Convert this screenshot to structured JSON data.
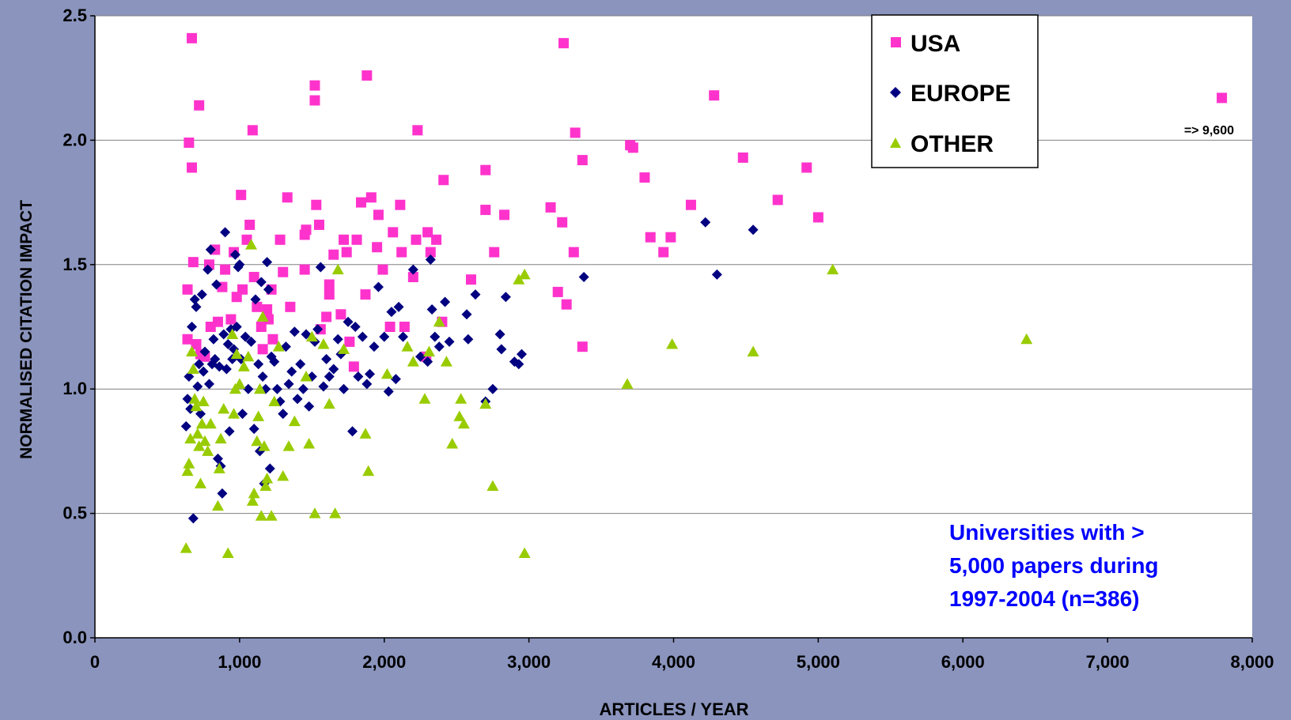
{
  "colors": {
    "background": "#8a94bd",
    "plot_bg": "#ffffff",
    "USA": "#ff33cc",
    "EUROPE": "#000080",
    "OTHER": "#99cc00",
    "annotation": "#0000ff"
  },
  "chart_data": {
    "type": "scatter",
    "title": "",
    "xlabel": "ARTICLES / YEAR",
    "ylabel": "NORMALISED CITATION IMPACT",
    "xlim": [
      0,
      8000
    ],
    "ylim": [
      0,
      2.5
    ],
    "x_ticks": [
      0,
      1000,
      2000,
      3000,
      4000,
      5000,
      6000,
      7000,
      8000
    ],
    "x_tick_labels": [
      "0",
      "1,000",
      "2,000",
      "3,000",
      "4,000",
      "5,000",
      "6,000",
      "7,000",
      "8,000"
    ],
    "y_ticks": [
      0,
      0.5,
      1,
      1.5,
      2,
      2.5
    ],
    "y_tick_labels": [
      "0.0",
      "0.5",
      "1.0",
      "1.5",
      "2.0",
      "2.5"
    ],
    "grid": "horizontal",
    "legend_position": "top-right",
    "annotation_text": [
      "Universities with  >",
      "5,000 papers during",
      "1997-2004 (n=386)"
    ],
    "outlier_label": "=> 9,600",
    "series": [
      {
        "name": "USA",
        "marker": "square",
        "points": [
          [
            670,
            2.41
          ],
          [
            650,
            1.99
          ],
          [
            670,
            1.89
          ],
          [
            720,
            2.14
          ],
          [
            640,
            1.4
          ],
          [
            680,
            1.51
          ],
          [
            640,
            1.2
          ],
          [
            700,
            1.18
          ],
          [
            730,
            1.14
          ],
          [
            760,
            1.13
          ],
          [
            800,
            1.25
          ],
          [
            790,
            1.5
          ],
          [
            830,
            1.56
          ],
          [
            850,
            1.27
          ],
          [
            880,
            1.41
          ],
          [
            900,
            1.48
          ],
          [
            940,
            1.28
          ],
          [
            960,
            1.55
          ],
          [
            980,
            1.37
          ],
          [
            1010,
            1.78
          ],
          [
            1020,
            1.4
          ],
          [
            1050,
            1.6
          ],
          [
            1070,
            1.66
          ],
          [
            1090,
            2.04
          ],
          [
            1100,
            1.45
          ],
          [
            1120,
            1.33
          ],
          [
            1150,
            1.25
          ],
          [
            1160,
            1.16
          ],
          [
            1190,
            1.32
          ],
          [
            1200,
            1.28
          ],
          [
            1220,
            1.4
          ],
          [
            1230,
            1.2
          ],
          [
            1280,
            1.6
          ],
          [
            1330,
            1.77
          ],
          [
            1350,
            1.33
          ],
          [
            1300,
            1.47
          ],
          [
            1450,
            1.62
          ],
          [
            1460,
            1.64
          ],
          [
            1450,
            1.48
          ],
          [
            1520,
            2.22
          ],
          [
            1520,
            2.16
          ],
          [
            1530,
            1.74
          ],
          [
            1550,
            1.66
          ],
          [
            1560,
            1.24
          ],
          [
            1600,
            1.29
          ],
          [
            1620,
            1.42
          ],
          [
            1620,
            1.38
          ],
          [
            1650,
            1.54
          ],
          [
            1700,
            1.3
          ],
          [
            1720,
            1.6
          ],
          [
            1740,
            1.55
          ],
          [
            1760,
            1.19
          ],
          [
            1790,
            1.09
          ],
          [
            1810,
            1.6
          ],
          [
            1840,
            1.75
          ],
          [
            1870,
            1.38
          ],
          [
            1880,
            2.26
          ],
          [
            1910,
            1.77
          ],
          [
            1950,
            1.57
          ],
          [
            1960,
            1.7
          ],
          [
            1990,
            1.48
          ],
          [
            2040,
            1.25
          ],
          [
            2060,
            1.63
          ],
          [
            2110,
            1.74
          ],
          [
            2120,
            1.55
          ],
          [
            2140,
            1.25
          ],
          [
            2200,
            1.45
          ],
          [
            2220,
            1.6
          ],
          [
            2230,
            2.04
          ],
          [
            2290,
            1.13
          ],
          [
            2300,
            1.63
          ],
          [
            2320,
            1.55
          ],
          [
            2360,
            1.6
          ],
          [
            2400,
            1.27
          ],
          [
            2410,
            1.84
          ],
          [
            2600,
            1.44
          ],
          [
            2700,
            1.72
          ],
          [
            2700,
            1.88
          ],
          [
            2760,
            1.55
          ],
          [
            2830,
            1.7
          ],
          [
            3150,
            1.73
          ],
          [
            3200,
            1.39
          ],
          [
            3230,
            1.67
          ],
          [
            3240,
            2.39
          ],
          [
            3260,
            1.34
          ],
          [
            3310,
            1.55
          ],
          [
            3320,
            2.03
          ],
          [
            3370,
            1.92
          ],
          [
            3370,
            1.17
          ],
          [
            3700,
            1.98
          ],
          [
            3720,
            1.97
          ],
          [
            3800,
            1.85
          ],
          [
            3840,
            1.61
          ],
          [
            3930,
            1.55
          ],
          [
            3980,
            1.61
          ],
          [
            4120,
            1.74
          ],
          [
            4280,
            2.18
          ],
          [
            4480,
            1.93
          ],
          [
            4720,
            1.76
          ],
          [
            4920,
            1.89
          ],
          [
            5000,
            1.69
          ],
          [
            7790,
            2.17
          ]
        ]
      },
      {
        "name": "EUROPE",
        "marker": "diamond",
        "points": [
          [
            630,
            0.85
          ],
          [
            640,
            0.96
          ],
          [
            650,
            1.05
          ],
          [
            660,
            0.92
          ],
          [
            670,
            1.25
          ],
          [
            680,
            0.48
          ],
          [
            690,
            1.36
          ],
          [
            700,
            1.33
          ],
          [
            710,
            1.01
          ],
          [
            720,
            1.1
          ],
          [
            730,
            0.9
          ],
          [
            740,
            1.38
          ],
          [
            750,
            1.07
          ],
          [
            760,
            1.15
          ],
          [
            780,
            1.48
          ],
          [
            790,
            1.02
          ],
          [
            800,
            1.56
          ],
          [
            810,
            1.1
          ],
          [
            820,
            1.2
          ],
          [
            830,
            1.12
          ],
          [
            840,
            1.42
          ],
          [
            850,
            0.72
          ],
          [
            860,
            1.09
          ],
          [
            870,
            0.69
          ],
          [
            880,
            0.58
          ],
          [
            890,
            1.22
          ],
          [
            900,
            1.63
          ],
          [
            910,
            1.08
          ],
          [
            920,
            1.18
          ],
          [
            930,
            0.83
          ],
          [
            940,
            1.24
          ],
          [
            950,
            1.12
          ],
          [
            960,
            1.16
          ],
          [
            970,
            1.54
          ],
          [
            980,
            1.25
          ],
          [
            990,
            1.49
          ],
          [
            1000,
            1.5
          ],
          [
            1010,
            1.12
          ],
          [
            1020,
            0.9
          ],
          [
            1040,
            1.21
          ],
          [
            1060,
            1.0
          ],
          [
            1080,
            1.19
          ],
          [
            1100,
            0.84
          ],
          [
            1110,
            1.36
          ],
          [
            1130,
            1.1
          ],
          [
            1140,
            0.75
          ],
          [
            1150,
            1.43
          ],
          [
            1160,
            1.05
          ],
          [
            1170,
            0.62
          ],
          [
            1180,
            1.0
          ],
          [
            1190,
            1.51
          ],
          [
            1200,
            1.4
          ],
          [
            1210,
            0.68
          ],
          [
            1220,
            1.13
          ],
          [
            1240,
            1.11
          ],
          [
            1260,
            1.0
          ],
          [
            1280,
            0.95
          ],
          [
            1300,
            0.9
          ],
          [
            1320,
            1.17
          ],
          [
            1340,
            1.02
          ],
          [
            1360,
            1.07
          ],
          [
            1380,
            1.23
          ],
          [
            1400,
            0.96
          ],
          [
            1420,
            1.1
          ],
          [
            1440,
            1.0
          ],
          [
            1460,
            1.22
          ],
          [
            1480,
            0.93
          ],
          [
            1500,
            1.05
          ],
          [
            1520,
            1.19
          ],
          [
            1540,
            1.24
          ],
          [
            1560,
            1.49
          ],
          [
            1580,
            1.01
          ],
          [
            1600,
            1.12
          ],
          [
            1620,
            1.05
          ],
          [
            1650,
            1.08
          ],
          [
            1680,
            1.2
          ],
          [
            1700,
            1.14
          ],
          [
            1720,
            1.0
          ],
          [
            1750,
            1.27
          ],
          [
            1780,
            0.83
          ],
          [
            1800,
            1.25
          ],
          [
            1820,
            1.05
          ],
          [
            1850,
            1.21
          ],
          [
            1880,
            1.02
          ],
          [
            1900,
            1.06
          ],
          [
            1930,
            1.17
          ],
          [
            1960,
            1.41
          ],
          [
            2000,
            1.21
          ],
          [
            2030,
            0.99
          ],
          [
            2050,
            1.31
          ],
          [
            2080,
            1.04
          ],
          [
            2100,
            1.33
          ],
          [
            2130,
            1.21
          ],
          [
            2200,
            1.48
          ],
          [
            2250,
            1.13
          ],
          [
            2300,
            1.11
          ],
          [
            2320,
            1.52
          ],
          [
            2330,
            1.32
          ],
          [
            2350,
            1.21
          ],
          [
            2380,
            1.17
          ],
          [
            2420,
            1.35
          ],
          [
            2450,
            1.19
          ],
          [
            2570,
            1.3
          ],
          [
            2580,
            1.2
          ],
          [
            2630,
            1.38
          ],
          [
            2700,
            0.95
          ],
          [
            2750,
            1.0
          ],
          [
            2800,
            1.22
          ],
          [
            2810,
            1.16
          ],
          [
            2840,
            1.37
          ],
          [
            2900,
            1.11
          ],
          [
            2930,
            1.1
          ],
          [
            2950,
            1.14
          ],
          [
            3380,
            1.45
          ],
          [
            4220,
            1.67
          ],
          [
            4300,
            1.46
          ],
          [
            4550,
            1.64
          ]
        ]
      },
      {
        "name": "OTHER",
        "marker": "triangle",
        "points": [
          [
            630,
            0.36
          ],
          [
            640,
            0.67
          ],
          [
            650,
            0.7
          ],
          [
            660,
            0.8
          ],
          [
            670,
            1.15
          ],
          [
            680,
            1.08
          ],
          [
            690,
            0.96
          ],
          [
            700,
            0.93
          ],
          [
            710,
            0.82
          ],
          [
            720,
            0.77
          ],
          [
            730,
            0.62
          ],
          [
            740,
            0.86
          ],
          [
            750,
            0.95
          ],
          [
            760,
            0.79
          ],
          [
            780,
            0.75
          ],
          [
            800,
            0.86
          ],
          [
            850,
            0.53
          ],
          [
            860,
            0.68
          ],
          [
            870,
            0.8
          ],
          [
            890,
            0.92
          ],
          [
            920,
            0.34
          ],
          [
            950,
            1.22
          ],
          [
            960,
            0.9
          ],
          [
            970,
            1.0
          ],
          [
            980,
            1.14
          ],
          [
            1000,
            1.02
          ],
          [
            1030,
            1.09
          ],
          [
            1060,
            1.13
          ],
          [
            1080,
            1.58
          ],
          [
            1090,
            0.55
          ],
          [
            1100,
            0.58
          ],
          [
            1120,
            0.79
          ],
          [
            1130,
            0.89
          ],
          [
            1140,
            1.0
          ],
          [
            1150,
            0.49
          ],
          [
            1160,
            1.29
          ],
          [
            1170,
            0.77
          ],
          [
            1180,
            0.61
          ],
          [
            1190,
            0.64
          ],
          [
            1220,
            0.49
          ],
          [
            1240,
            0.95
          ],
          [
            1270,
            1.17
          ],
          [
            1300,
            0.65
          ],
          [
            1340,
            0.77
          ],
          [
            1380,
            0.87
          ],
          [
            1460,
            1.05
          ],
          [
            1480,
            0.78
          ],
          [
            1500,
            1.21
          ],
          [
            1520,
            0.5
          ],
          [
            1580,
            1.18
          ],
          [
            1620,
            0.94
          ],
          [
            1660,
            0.5
          ],
          [
            1680,
            1.48
          ],
          [
            1720,
            1.16
          ],
          [
            1870,
            0.82
          ],
          [
            1890,
            0.67
          ],
          [
            2020,
            1.06
          ],
          [
            2160,
            1.17
          ],
          [
            2200,
            1.11
          ],
          [
            2280,
            0.96
          ],
          [
            2310,
            1.15
          ],
          [
            2380,
            1.27
          ],
          [
            2430,
            1.11
          ],
          [
            2470,
            0.78
          ],
          [
            2520,
            0.89
          ],
          [
            2530,
            0.96
          ],
          [
            2550,
            0.86
          ],
          [
            2700,
            0.94
          ],
          [
            2750,
            0.61
          ],
          [
            2930,
            1.44
          ],
          [
            2970,
            1.46
          ],
          [
            2970,
            0.34
          ],
          [
            3680,
            1.02
          ],
          [
            3990,
            1.18
          ],
          [
            4550,
            1.15
          ],
          [
            5100,
            1.48
          ],
          [
            6440,
            1.2
          ]
        ]
      }
    ]
  }
}
